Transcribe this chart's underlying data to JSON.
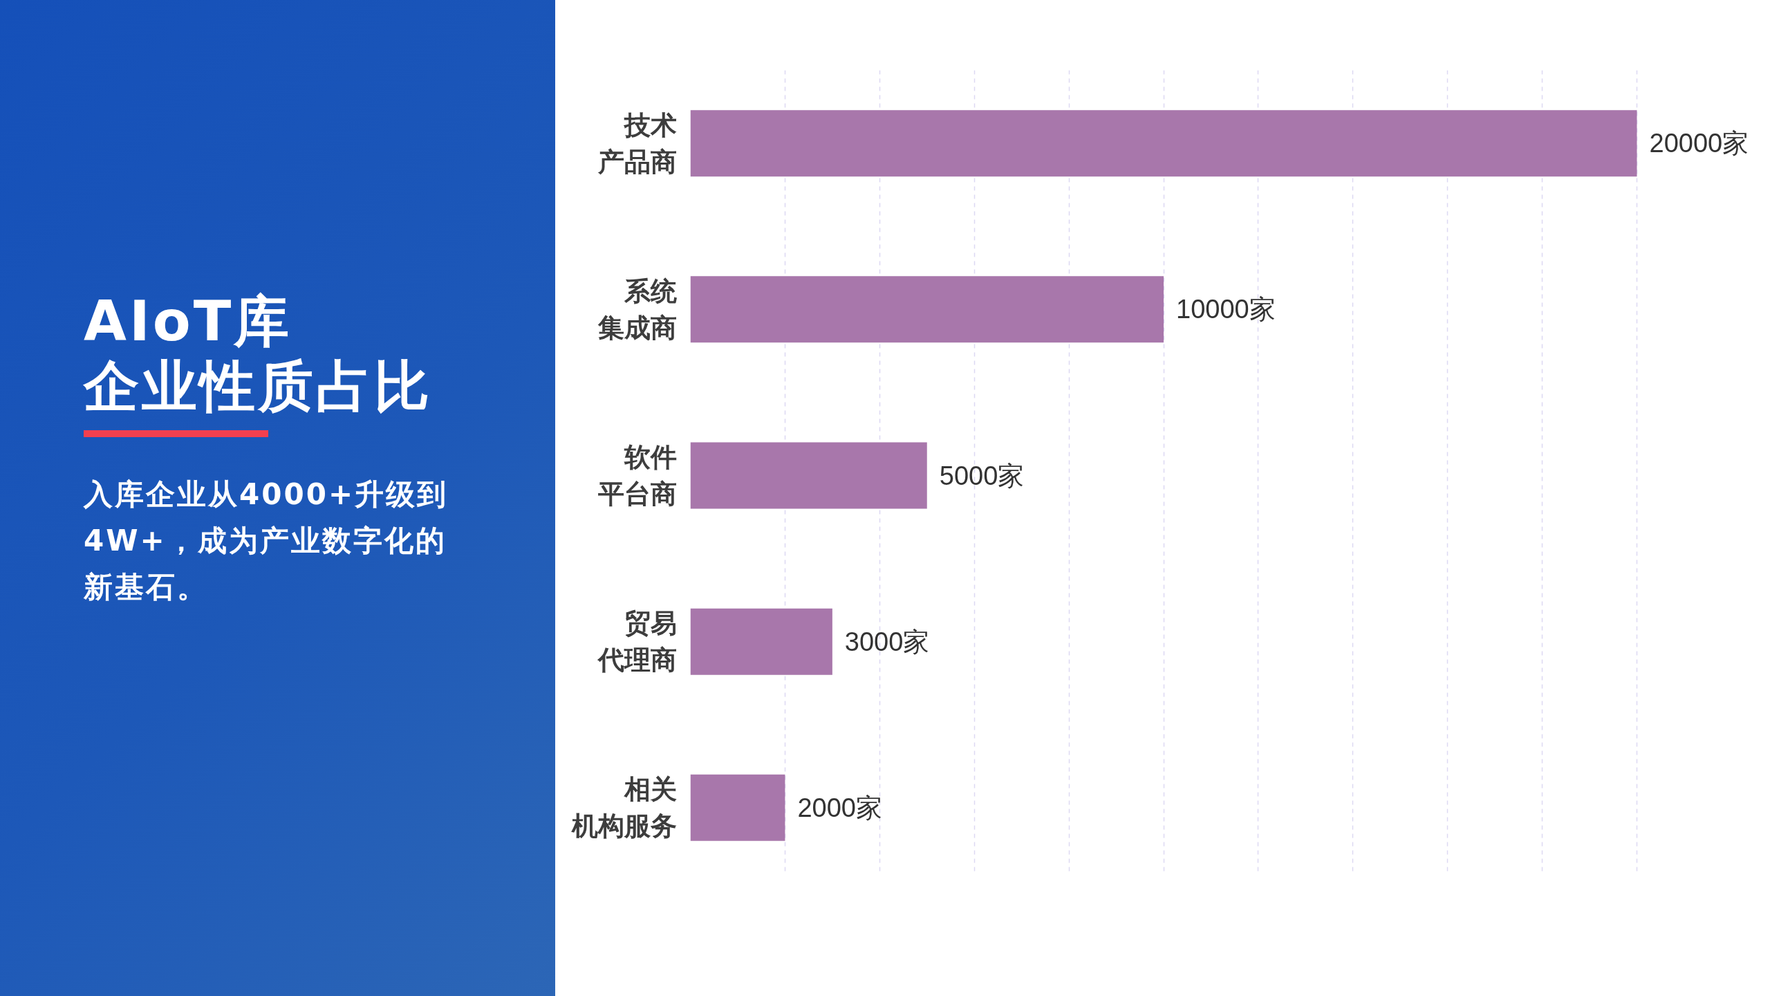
{
  "chart_data": {
    "type": "bar",
    "orientation": "horizontal",
    "title": "AIoT库企业性质占比",
    "subtitle": "入库企业从4000+升级到4W+，成为产业数字化的新基石。",
    "categories": [
      "技术产品商",
      "系统集成商",
      "软件平台商",
      "贸易代理商",
      "相关机构服务"
    ],
    "values": [
      20000,
      10000,
      5000,
      3000,
      2000
    ],
    "value_labels": [
      "20000家",
      "10000家",
      "5000家",
      "3000家",
      "2000家"
    ],
    "color": "#a877ab",
    "grid": "x",
    "tick_labels": "y"
  }
}
